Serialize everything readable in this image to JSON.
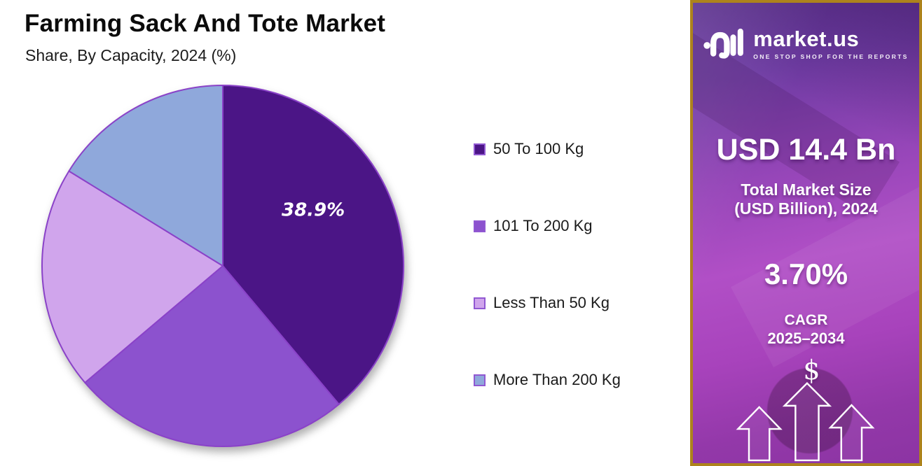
{
  "chart_data": {
    "type": "pie",
    "title": "Farming Sack And Tote Market",
    "subtitle": "Share, By Capacity, 2024 (%)",
    "unit": "%",
    "start_angle_deg": 0,
    "direction": "clockwise",
    "legend_position": "right",
    "stroke_color": "#8a42c8",
    "slices": [
      {
        "label": "50 To 100 Kg",
        "value": 38.9,
        "color": "#4b1586",
        "data_label": "38.9%"
      },
      {
        "label": "101 To 200 Kg",
        "value": 24.9,
        "color": "#8c52ce",
        "data_label": ""
      },
      {
        "label": "Less Than 50 Kg",
        "value": 20.0,
        "color": "#d0a5ec",
        "data_label": ""
      },
      {
        "label": "More Than 200 Kg",
        "value": 16.2,
        "color": "#8fa8db",
        "data_label": ""
      }
    ]
  },
  "sidebar": {
    "logo": {
      "brand": "market.us",
      "tagline": "ONE STOP SHOP FOR THE REPORTS"
    },
    "market_size_value": "USD 14.4 Bn",
    "market_size_label_line1": "Total Market Size",
    "market_size_label_line2": "(USD Billion), 2024",
    "cagr_value": "3.70%",
    "cagr_label_line1": "CAGR",
    "cagr_label_line2": "2025–2034",
    "dollar_symbol": "$",
    "colors": {
      "border_gold": "#ad831c",
      "bg_top_purple": "#5f3494",
      "bg_mid_magenta": "#b14fc6",
      "bg_bottom_magenta": "#8c34a3"
    }
  }
}
